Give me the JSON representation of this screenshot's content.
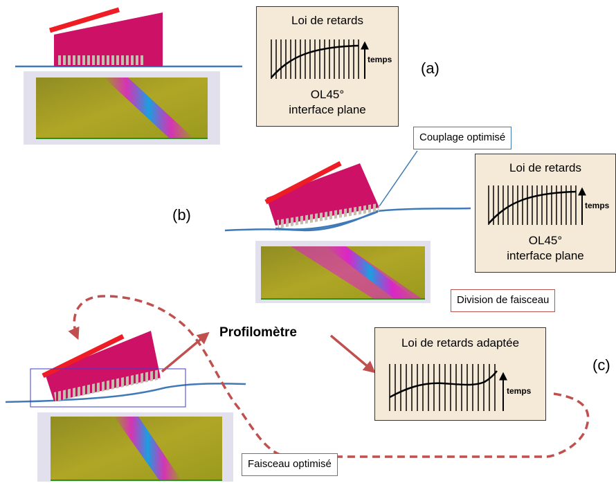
{
  "panel_a": {
    "label": "(a)",
    "box": {
      "title": "Loi de retards",
      "axis": "temps",
      "line1": "OL45°",
      "line2": "interface plane"
    }
  },
  "panel_b": {
    "label": "(b)",
    "box": {
      "title": "Loi de retards",
      "axis": "temps",
      "line1": "OL45°",
      "line2": "interface plane"
    },
    "note_coupling": "Couplage optimisé",
    "note_division": "Division de faisceau"
  },
  "panel_c": {
    "label": "(c)",
    "profilometer": "Profilomètre",
    "box": {
      "title": "Loi de retards adaptée",
      "axis": "temps"
    },
    "note_beam": "Faisceau optimisé"
  },
  "colors": {
    "probe_body": "#cc1166",
    "wedge": "#ee1c24",
    "surface_line": "#3f79b8",
    "arrow_red": "#c0504d",
    "box_fill": "#f5ead8",
    "heatmap_bg": "#a39a20",
    "heatmap_beam": "#e11ad6",
    "heatmap_core": "#1a9fe0"
  }
}
